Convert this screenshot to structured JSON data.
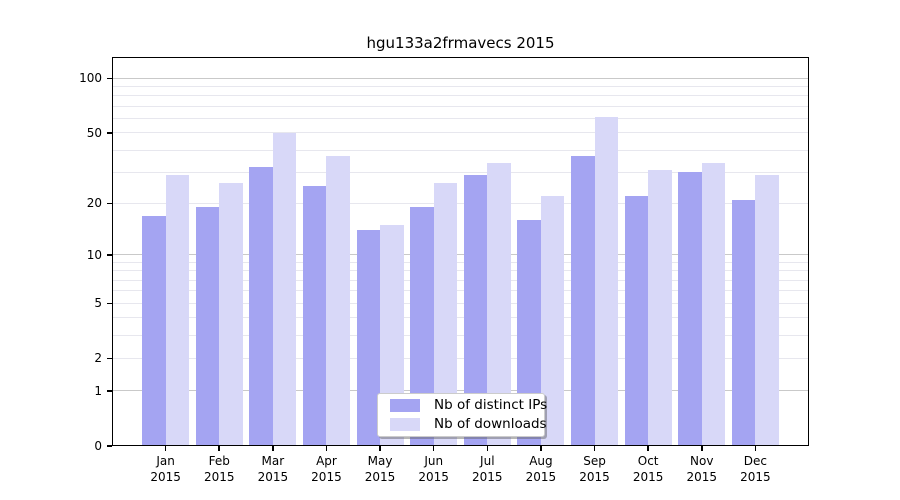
{
  "chart_data": {
    "type": "bar",
    "title": "hgu133a2frmavecs 2015",
    "year_label": "2015",
    "categories": [
      "Jan",
      "Feb",
      "Mar",
      "Apr",
      "May",
      "Jun",
      "Jul",
      "Aug",
      "Sep",
      "Oct",
      "Nov",
      "Dec"
    ],
    "series": [
      {
        "name": "Nb of distinct IPs",
        "color": "#a4a4f2",
        "values": [
          17,
          19,
          32,
          25,
          14,
          19,
          29,
          16,
          37,
          22,
          30,
          21
        ]
      },
      {
        "name": "Nb of downloads",
        "color": "#d8d8f8",
        "values": [
          29,
          26,
          50,
          37,
          15,
          26,
          34,
          22,
          61,
          31,
          34,
          29
        ]
      }
    ],
    "yticks": [
      0,
      1,
      2,
      5,
      10,
      20,
      50,
      100
    ],
    "minor_gridlines": [
      3,
      4,
      6,
      7,
      8,
      9,
      30,
      40,
      60,
      70,
      80,
      90
    ],
    "major_gridlines": [
      1,
      10,
      100
    ],
    "scale": "log1p",
    "ylim": [
      0,
      131
    ],
    "xlabel": "",
    "ylabel": "",
    "grid": true,
    "legend_position": "lower-center-inside",
    "colors": {
      "axis": "#000000",
      "major_grid": "#c9c9c9",
      "minor_grid": "#e7e7ee"
    }
  }
}
